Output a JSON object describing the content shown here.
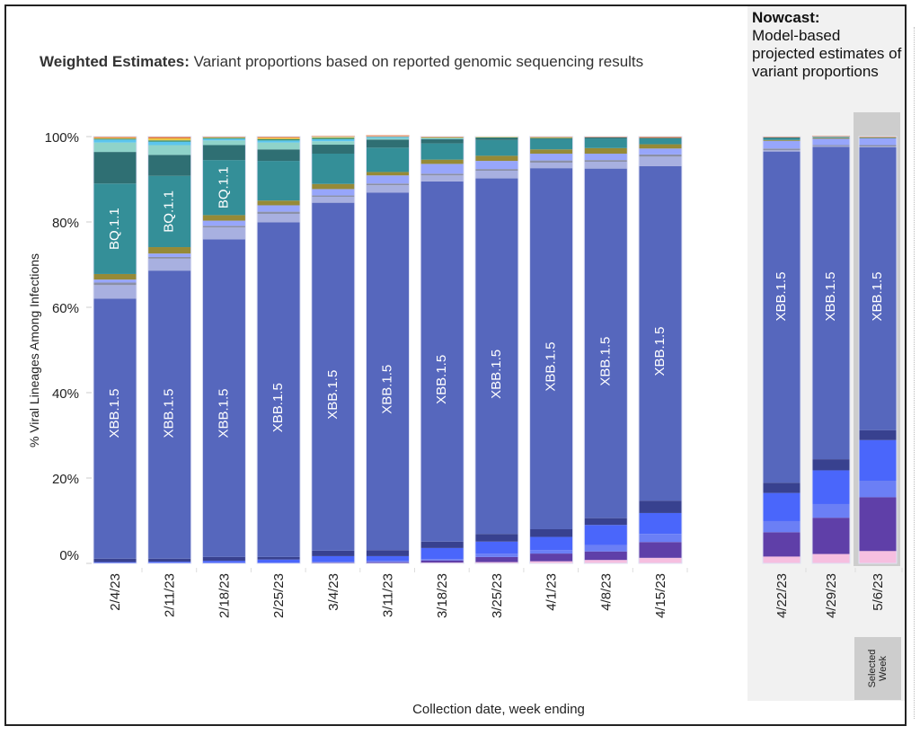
{
  "title": {
    "bold": "Weighted Estimates:",
    "text": " Variant proportions based on reported genomic sequencing results"
  },
  "nowcast": {
    "bold": "Nowcast:",
    "text": "Model-based projected estimates of variant proportions",
    "selected_week_label_line1": "Selected",
    "selected_week_label_line2": "Week"
  },
  "colors": {
    "pink": "#f6bfe0",
    "purple": "#5f3fa8",
    "lightblue": "#6b7ff5",
    "blue": "#4a66fb",
    "navy": "#38418f",
    "xbb15": "#5667bd",
    "lavender": "#a8b0e0",
    "gray": "#8a8fa6",
    "periwinkle": "#97a6fb",
    "olive": "#968a37",
    "bq11": "#348f98",
    "darkteal": "#2f6f73",
    "mint": "#8fd3c9",
    "sky": "#5bc5ee",
    "green": "#2e8a6a",
    "yellow": "#e9c94a",
    "orange": "#e26b2c"
  },
  "chart_data": {
    "type": "bar",
    "stacked": true,
    "title": "Weighted Estimates: Variant proportions based on reported genomic sequencing results",
    "xlabel": "Collection date, week ending",
    "ylabel": "% Viral Lineages Among Infections",
    "ylim": [
      0,
      100
    ],
    "yticks": [
      "0%",
      "20%",
      "40%",
      "60%",
      "80%",
      "100%"
    ],
    "grid": false,
    "categories": [
      "2/4/23",
      "2/11/23",
      "2/18/23",
      "2/25/23",
      "3/4/23",
      "3/11/23",
      "3/18/23",
      "3/25/23",
      "4/1/23",
      "4/8/23",
      "4/15/23",
      "4/22/23",
      "4/29/23",
      "5/6/23"
    ],
    "nowcast_categories": [
      "4/22/23",
      "4/29/23",
      "5/6/23"
    ],
    "selected_week": "5/6/23",
    "series_order_bottom_to_top": [
      "pink",
      "purple",
      "lightblue",
      "blue",
      "navy",
      "xbb15",
      "lavender",
      "gray",
      "periwinkle",
      "olive",
      "bq11",
      "darkteal",
      "mint",
      "sky",
      "green",
      "yellow",
      "orange"
    ],
    "series_labels": {
      "xbb15": "XBB.1.5",
      "bq11": "BQ.1.1"
    },
    "bars": [
      {
        "pink": 0,
        "purple": 0,
        "lightblue": 0,
        "blue": 0.3,
        "navy": 0.8,
        "xbb15": 60.9,
        "lavender": 3.2,
        "gray": 0.6,
        "periwinkle": 0.7,
        "olive": 1.3,
        "bq11": 21.2,
        "darkteal": 7.4,
        "mint": 2.2,
        "sky": 0.7,
        "green": 0.2,
        "yellow": 0.2,
        "orange": 0.3,
        "label_xbb": true,
        "label_bq": true
      },
      {
        "pink": 0,
        "purple": 0,
        "lightblue": 0,
        "blue": 0.4,
        "navy": 0.7,
        "xbb15": 67.5,
        "lavender": 2.8,
        "gray": 0.4,
        "periwinkle": 0.8,
        "olive": 1.5,
        "bq11": 16.7,
        "darkteal": 4.9,
        "mint": 2.3,
        "sky": 0.8,
        "green": 0.3,
        "yellow": 0.5,
        "orange": 0.4,
        "label_xbb": true,
        "label_bq": true
      },
      {
        "pink": 0,
        "purple": 0,
        "lightblue": 0,
        "blue": 0.6,
        "navy": 0.9,
        "xbb15": 74.4,
        "lavender": 2.8,
        "gray": 0.4,
        "periwinkle": 1.2,
        "olive": 1.3,
        "bq11": 12.9,
        "darkteal": 3.5,
        "mint": 1.1,
        "sky": 0.4,
        "green": 0.2,
        "yellow": 0.1,
        "orange": 0.2,
        "label_xbb": true,
        "label_bq": true
      },
      {
        "pink": 0,
        "purple": 0,
        "lightblue": 0,
        "blue": 0.9,
        "navy": 0.6,
        "xbb15": 78.4,
        "lavender": 2.0,
        "gray": 0.5,
        "periwinkle": 1.5,
        "olive": 1.1,
        "bq11": 9.3,
        "darkteal": 2.7,
        "mint": 1.6,
        "sky": 0.5,
        "green": 0.3,
        "yellow": 0.3,
        "orange": 0.3,
        "label_xbb": true,
        "label_bq": false
      },
      {
        "pink": 0,
        "purple": 0.2,
        "lightblue": 0.2,
        "blue": 1.3,
        "navy": 1.3,
        "xbb15": 81.5,
        "lavender": 1.4,
        "gray": 0.3,
        "periwinkle": 1.5,
        "olive": 1.2,
        "bq11": 7.1,
        "darkteal": 2.1,
        "mint": 0.8,
        "sky": 0.5,
        "green": 0.3,
        "yellow": 0.2,
        "orange": 0.3,
        "label_xbb": true,
        "label_bq": false
      },
      {
        "pink": 0,
        "purple": 0.3,
        "lightblue": 0.3,
        "blue": 1.1,
        "navy": 1.4,
        "xbb15": 83.8,
        "lavender": 1.7,
        "gray": 0.4,
        "periwinkle": 1.9,
        "olive": 0.8,
        "bq11": 5.7,
        "darkteal": 1.9,
        "mint": 0.3,
        "sky": 0.2,
        "green": 0.1,
        "yellow": 0.2,
        "orange": 0.2,
        "label_xbb": true,
        "label_bq": false
      },
      {
        "pink": 0.2,
        "purple": 0.5,
        "lightblue": 0.3,
        "blue": 2.6,
        "navy": 1.5,
        "xbb15": 84.4,
        "lavender": 1.4,
        "gray": 0.4,
        "periwinkle": 2.3,
        "olive": 1.0,
        "bq11": 3.8,
        "darkteal": 1.0,
        "mint": 0.1,
        "sky": 0.1,
        "green": 0.1,
        "yellow": 0.1,
        "orange": 0.2,
        "label_xbb": true,
        "label_bq": false
      },
      {
        "pink": 0.3,
        "purple": 1.2,
        "lightblue": 0.8,
        "blue": 2.8,
        "navy": 1.8,
        "xbb15": 83.3,
        "lavender": 1.8,
        "gray": 0.4,
        "periwinkle": 1.9,
        "olive": 1.2,
        "bq11": 3.7,
        "darkteal": 0.5,
        "mint": 0,
        "sky": 0,
        "green": 0.1,
        "yellow": 0.1,
        "orange": 0.1,
        "label_xbb": true,
        "label_bq": false
      },
      {
        "pink": 0.5,
        "purple": 1.8,
        "lightblue": 0.8,
        "blue": 3.1,
        "navy": 1.8,
        "xbb15": 84.6,
        "lavender": 1.3,
        "gray": 0.5,
        "periwinkle": 1.6,
        "olive": 1.0,
        "bq11": 2.4,
        "darkteal": 0.2,
        "mint": 0,
        "sky": 0,
        "green": 0.1,
        "yellow": 0.1,
        "orange": 0.2,
        "label_xbb": true,
        "label_bq": false
      },
      {
        "pink": 0.8,
        "purple": 2.0,
        "lightblue": 1.5,
        "blue": 4.7,
        "navy": 1.6,
        "xbb15": 81.9,
        "lavender": 1.6,
        "gray": 0.4,
        "periwinkle": 1.5,
        "olive": 1.3,
        "bq11": 2.2,
        "darkteal": 0.3,
        "mint": 0,
        "sky": 0,
        "green": 0,
        "yellow": 0,
        "orange": 0.2,
        "label_xbb": true,
        "label_bq": false
      },
      {
        "pink": 1.3,
        "purple": 3.7,
        "lightblue": 1.9,
        "blue": 4.9,
        "navy": 2.9,
        "xbb15": 78.4,
        "lavender": 2.2,
        "gray": 0.5,
        "periwinkle": 1.4,
        "olive": 1.0,
        "bq11": 1.4,
        "darkteal": 0.1,
        "mint": 0,
        "sky": 0,
        "green": 0,
        "yellow": 0,
        "orange": 0.3,
        "label_xbb": true,
        "label_bq": false
      },
      {
        "pink": 1.6,
        "purple": 5.7,
        "lightblue": 2.6,
        "blue": 6.6,
        "navy": 2.4,
        "xbb15": 77.6,
        "lavender": 0.3,
        "gray": 0.4,
        "periwinkle": 1.8,
        "olive": 0.2,
        "bq11": 0.4,
        "darkteal": 0.2,
        "mint": 0,
        "sky": 0,
        "green": 0,
        "yellow": 0,
        "orange": 0.2,
        "label_xbb": true,
        "label_bq": false
      },
      {
        "pink": 2.2,
        "purple": 8.5,
        "lightblue": 3.2,
        "blue": 7.9,
        "navy": 2.6,
        "xbb15": 73.2,
        "lavender": 0.2,
        "gray": 0.2,
        "periwinkle": 1.5,
        "olive": 0.2,
        "bq11": 0.2,
        "darkteal": 0.1,
        "mint": 0,
        "sky": 0,
        "green": 0,
        "yellow": 0,
        "orange": 0.2,
        "label_xbb": true,
        "label_bq": false
      },
      {
        "pink": 2.9,
        "purple": 12.6,
        "lightblue": 3.8,
        "blue": 9.6,
        "navy": 2.3,
        "xbb15": 66.3,
        "lavender": 0.2,
        "gray": 0.3,
        "periwinkle": 1.6,
        "olive": 0.1,
        "bq11": 0.1,
        "darkteal": 0,
        "mint": 0,
        "sky": 0,
        "green": 0,
        "yellow": 0,
        "orange": 0.2,
        "label_xbb": true,
        "label_bq": false
      }
    ]
  }
}
